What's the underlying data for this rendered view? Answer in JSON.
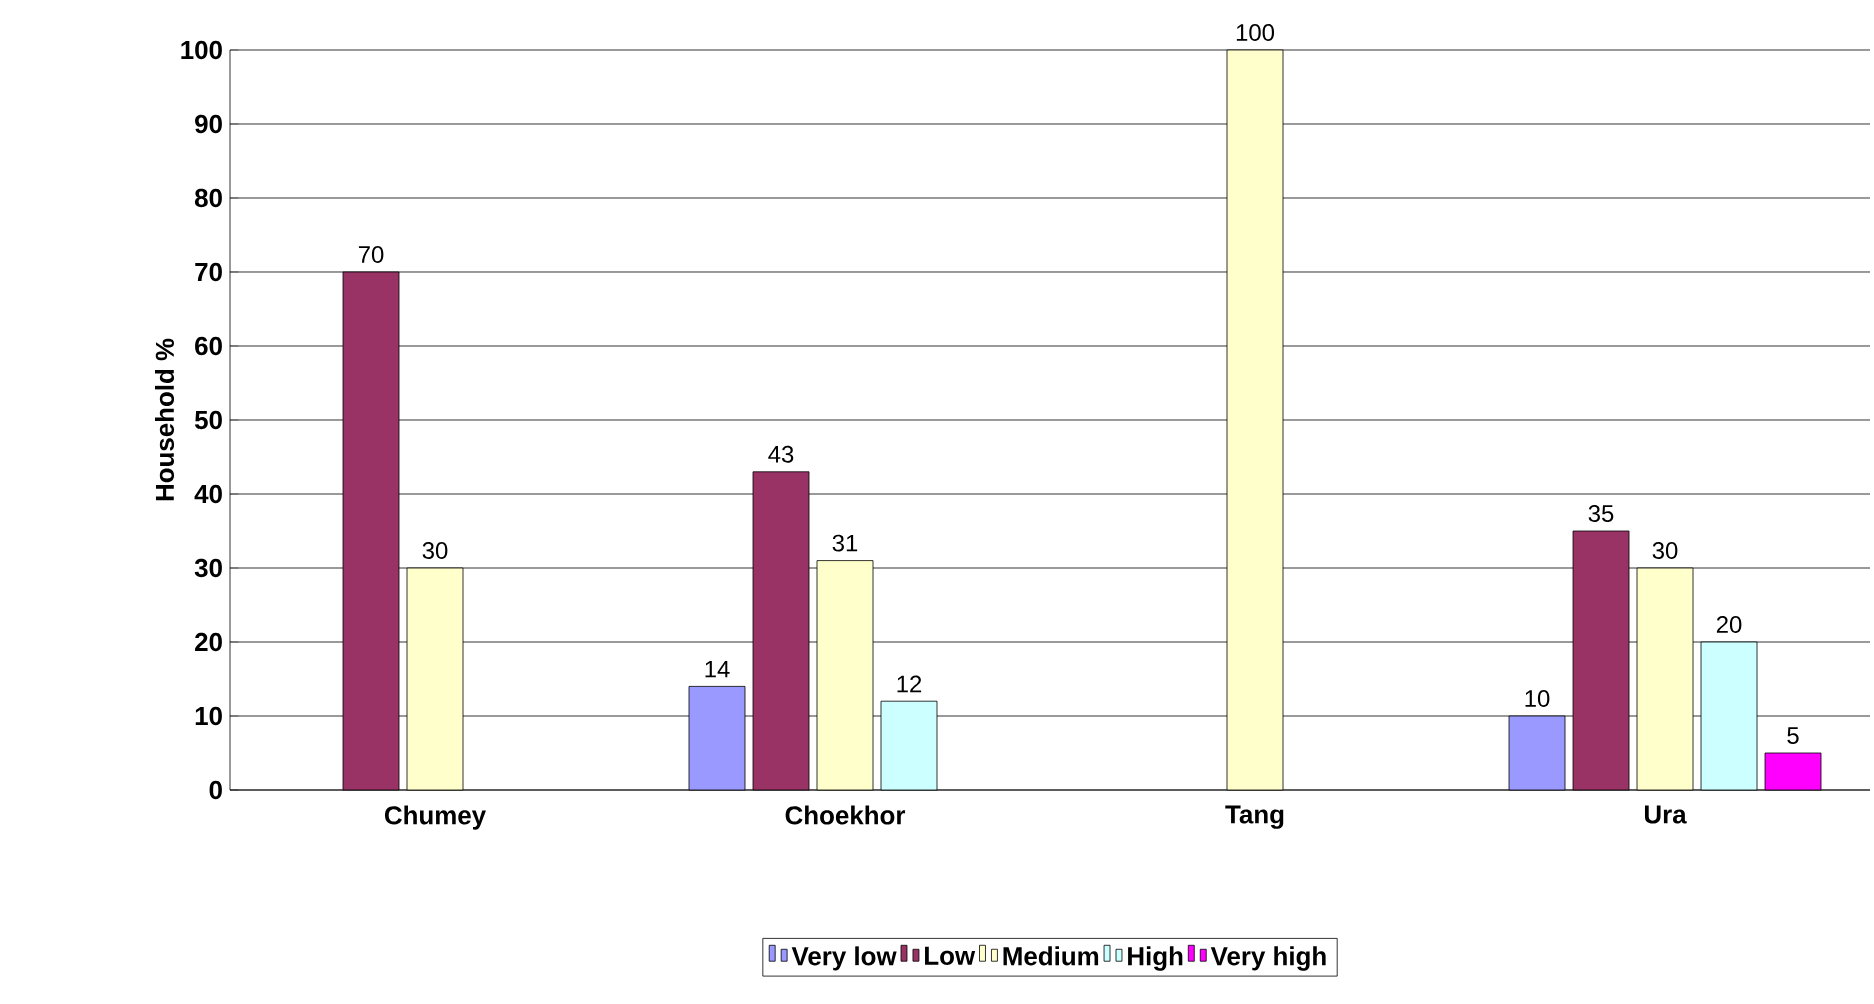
{
  "chart_data": {
    "type": "bar",
    "ylabel": "Household %",
    "categories": [
      "Chumey",
      "Choekhor",
      "Tang",
      "Ura"
    ],
    "series": [
      {
        "name": "Very low",
        "color": "#9999ff",
        "values": [
          null,
          14,
          null,
          10
        ]
      },
      {
        "name": "Low",
        "color": "#993366",
        "values": [
          70,
          43,
          null,
          35
        ]
      },
      {
        "name": "Medium",
        "color": "#ffffcc",
        "values": [
          30,
          31,
          100,
          30
        ]
      },
      {
        "name": "High",
        "color": "#ccffff",
        "values": [
          null,
          12,
          null,
          20
        ]
      },
      {
        "name": "Very high",
        "color": "#ff00ff",
        "values": [
          null,
          null,
          null,
          5
        ]
      }
    ],
    "ylim": [
      0,
      100
    ],
    "yticks": [
      0,
      10,
      20,
      30,
      40,
      50,
      60,
      70,
      80,
      90,
      100
    ],
    "grid": "y",
    "legend": "bottom",
    "data_labels": true
  }
}
